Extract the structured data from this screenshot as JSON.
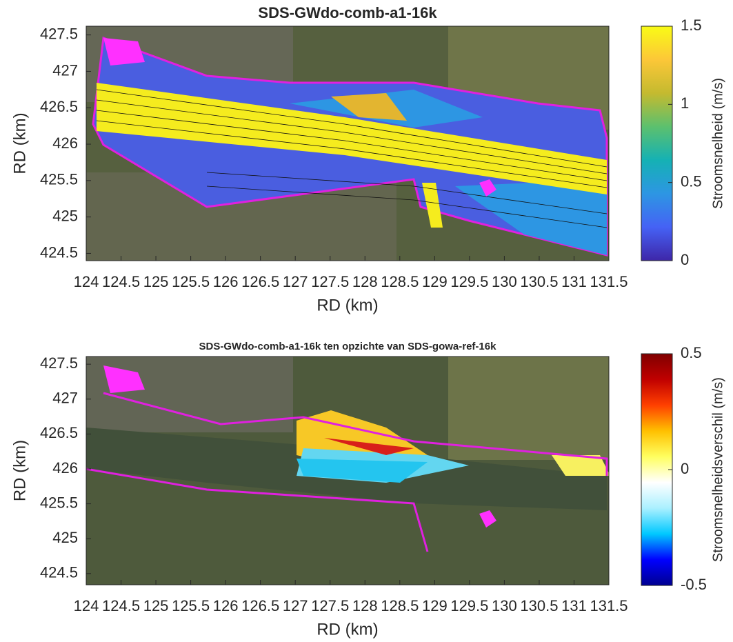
{
  "chart_data": [
    {
      "type": "map",
      "title": "SDS-GWdo-comb-a1-16k",
      "xlabel": "RD (km)",
      "ylabel": "RD (km)",
      "xlim": [
        124,
        131.5
      ],
      "ylim": [
        424.4,
        427.62
      ],
      "xticks": [
        124,
        124.5,
        125,
        125.5,
        126,
        126.5,
        127,
        127.5,
        128,
        128.5,
        129,
        129.5,
        130,
        130.5,
        131,
        131.5
      ],
      "yticks": [
        424.5,
        425,
        425.5,
        426,
        426.5,
        427,
        427.5
      ],
      "colorbar": {
        "label": "Stroomsnelheid (m/s)",
        "clim": [
          0,
          1.5
        ],
        "ticks": [
          0,
          0.5,
          1,
          1.5
        ],
        "colormap": [
          "#3e26a8",
          "#4562f5",
          "#2d96e3",
          "#15b1b4",
          "#5cc06e",
          "#c4ba2f",
          "#fcc738",
          "#f9fb15"
        ]
      }
    },
    {
      "type": "map",
      "title": "SDS-GWdo-comb-a1-16k ten opzichte van SDS-gowa-ref-16k",
      "xlabel": "RD (km)",
      "ylabel": "RD (km)",
      "xlim": [
        124,
        131.5
      ],
      "ylim": [
        424.34,
        427.61
      ],
      "xticks": [
        124,
        124.5,
        125,
        125.5,
        126,
        126.5,
        127,
        127.5,
        128,
        128.5,
        129,
        129.5,
        130,
        130.5,
        131,
        131.5
      ],
      "yticks": [
        424.5,
        425,
        425.5,
        426,
        426.5,
        427,
        427.5
      ],
      "colorbar": {
        "label": "Stroomsnelheidsverschil (m/s)",
        "clim": [
          -0.5,
          0.5
        ],
        "ticks": [
          -0.5,
          0,
          0.5
        ],
        "colormap": [
          "#00008f",
          "#0000ff",
          "#00c8ff",
          "#aaf0ff",
          "#ffffff",
          "#ffff60",
          "#ffc000",
          "#ff4000",
          "#c00000",
          "#800000"
        ]
      }
    }
  ]
}
